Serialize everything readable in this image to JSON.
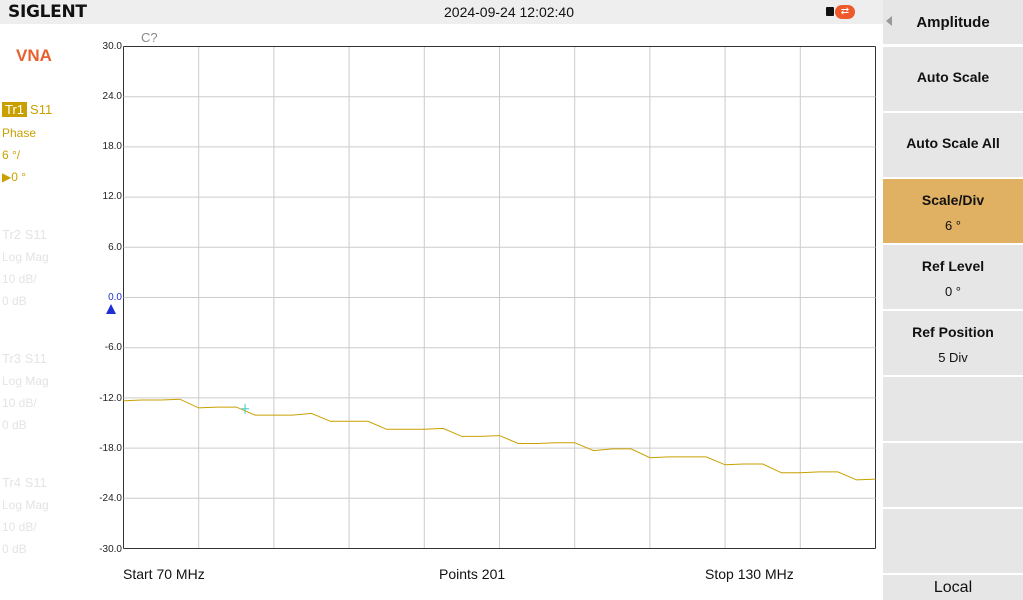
{
  "header": {
    "logo": "SIGLENT",
    "datetime": "2024-09-24 12:02:40",
    "icons": [
      "lock-icon",
      "usb-icon"
    ]
  },
  "left_panel": {
    "mode": "VNA",
    "traces": [
      {
        "id": "Tr1",
        "param": "S11",
        "format": "Phase",
        "scale": "6 °/",
        "ref": "0 °",
        "active": true
      },
      {
        "id": "Tr2",
        "param": "S11",
        "format": "Log Mag",
        "scale": "10 dB/",
        "ref": "0 dB",
        "active": false
      },
      {
        "id": "Tr3",
        "param": "S11",
        "format": "Log Mag",
        "scale": "10 dB/",
        "ref": "0 dB",
        "active": false
      },
      {
        "id": "Tr4",
        "param": "S11",
        "format": "Log Mag",
        "scale": "10 dB/",
        "ref": "0 dB",
        "active": false
      }
    ],
    "ref_marker_symbol": "▶"
  },
  "plot": {
    "cal_status": "C?",
    "y_ticks": [
      "30.0",
      "24.0",
      "18.0",
      "12.0",
      "6.0",
      "0.0",
      "-6.0",
      "-12.0",
      "-18.0",
      "-24.0",
      "-30.0"
    ]
  },
  "chart_data": {
    "type": "line",
    "title": "",
    "xlabel": "",
    "ylabel": "",
    "xlim": [
      70,
      130
    ],
    "ylim": [
      -30,
      30
    ],
    "x_divisions": 10,
    "y_divisions": 10,
    "grid": true,
    "series": [
      {
        "color": "#c9a000",
        "x_start_mhz": 70,
        "x_stop_mhz": 130,
        "values": [
          -11.9,
          -12.1,
          -12.4,
          -12.6,
          -12.9,
          -13.1,
          -13.4,
          -13.6,
          -13.9,
          -14.2,
          -14.3,
          -14.5,
          -14.8,
          -15.1,
          -15.3,
          -15.6,
          -15.9,
          -16.1,
          -16.3,
          -16.6,
          -16.8,
          -17.0,
          -17.3,
          -17.5,
          -17.8,
          -18.0,
          -18.1,
          -18.4,
          -18.7,
          -18.9,
          -19.2,
          -19.5,
          -19.7,
          -19.9,
          -20.2,
          -20.5,
          -20.8,
          -21.0,
          -21.3,
          -21.5,
          -21.7
        ]
      }
    ],
    "marker": {
      "x_mhz": 79.7,
      "y_deg": -13.3,
      "color": "#4fd3d3"
    }
  },
  "footer": {
    "start": "Start  70 MHz",
    "points": "Points  201",
    "stop": "Stop  130 MHz"
  },
  "menu": {
    "title": "Amplitude",
    "buttons": [
      {
        "label": "Auto Scale",
        "value": ""
      },
      {
        "label": "Auto Scale All",
        "value": ""
      },
      {
        "label": "Scale/Div",
        "value": "6 °",
        "active": true
      },
      {
        "label": "Ref Level",
        "value": "0 °"
      },
      {
        "label": "Ref Position",
        "value": "5 Div"
      },
      {
        "label": "",
        "value": ""
      },
      {
        "label": "",
        "value": ""
      },
      {
        "label": "",
        "value": ""
      }
    ],
    "local_label": "Local"
  },
  "colors": {
    "accent_orange": "#e8612c",
    "trace_yellow": "#c9a000",
    "menu_active": "#e1b163",
    "ref_arrow_blue": "#1f2fd6",
    "grid": "#cccccc"
  }
}
